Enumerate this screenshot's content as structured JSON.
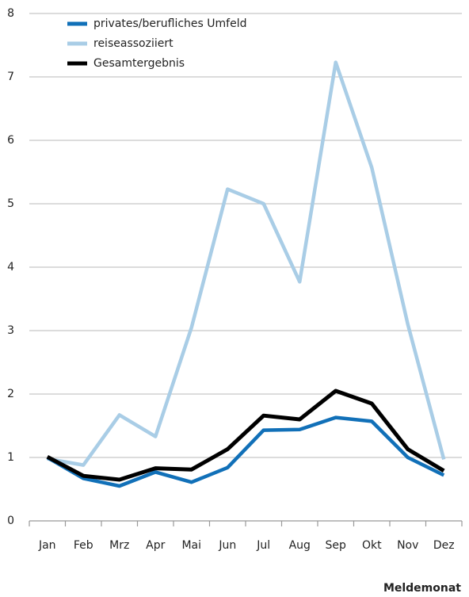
{
  "chart_data": {
    "type": "line",
    "x_label": "Meldemonat",
    "categories": [
      "Jan",
      "Feb",
      "Mrz",
      "Apr",
      "Mai",
      "Jun",
      "Jul",
      "Aug",
      "Sep",
      "Okt",
      "Nov",
      "Dez"
    ],
    "series": [
      {
        "name": "privates/berufliches Umfeld",
        "color": "#1170b8",
        "values": [
          1.0,
          0.67,
          0.55,
          0.77,
          0.61,
          0.84,
          1.43,
          1.44,
          1.63,
          1.57,
          1.0,
          0.72
        ]
      },
      {
        "name": "reiseassoziiert",
        "color": "#a9cde6",
        "values": [
          0.98,
          0.88,
          1.67,
          1.33,
          3.05,
          5.23,
          5.0,
          3.77,
          7.23,
          5.57,
          3.1,
          0.97
        ]
      },
      {
        "name": "Gesamtergebnis",
        "color": "#000000",
        "values": [
          1.01,
          0.71,
          0.65,
          0.83,
          0.81,
          1.13,
          1.66,
          1.6,
          2.05,
          1.85,
          1.13,
          0.79
        ]
      }
    ],
    "ylim": [
      0,
      8
    ],
    "yticks": [
      0,
      1,
      2,
      3,
      4,
      5,
      6,
      7,
      8
    ],
    "grid": true
  }
}
